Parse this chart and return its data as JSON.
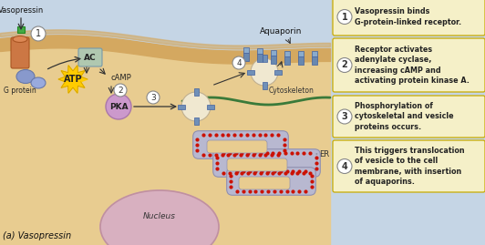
{
  "title": "(a) Vasopressin",
  "bg_outer": "#c5d5e5",
  "bg_cell": "#e8cc90",
  "bg_nucleus": "#d8b0c0",
  "bg_er": "#b8b8d0",
  "bg_membrane": "#d4a860",
  "panel_bg": "#f5f0c8",
  "panel_border": "#c8aa00",
  "steps": [
    {
      "num": "1",
      "text": "Vasopressin binds\nG-protein-linked receptor."
    },
    {
      "num": "2",
      "text": "Receptor activates\nadenylate cyclase,\nincreasing cAMP and\nactivating protein kinase A."
    },
    {
      "num": "3",
      "text": "Phosphorylation of\ncytoskeletal and vesicle\nproteins occurs."
    },
    {
      "num": "4",
      "text": "This triggers translocation\nof vesicle to the cell\nmembrane, with insertion\nof aquaporins."
    }
  ],
  "labels": {
    "vasopressin": "Vasopressin",
    "gprotein": "G protein",
    "ac": "AC",
    "atp": "ATP",
    "camp": "cAMP",
    "pka": "PKA",
    "aquaporin": "Aquaporin",
    "cytoskeleton": "Cytoskeleton",
    "er": "ER",
    "nucleus": "Nucleus"
  },
  "text_color": "#222222",
  "fig_width": 5.32,
  "fig_height": 2.69,
  "dpi": 100
}
